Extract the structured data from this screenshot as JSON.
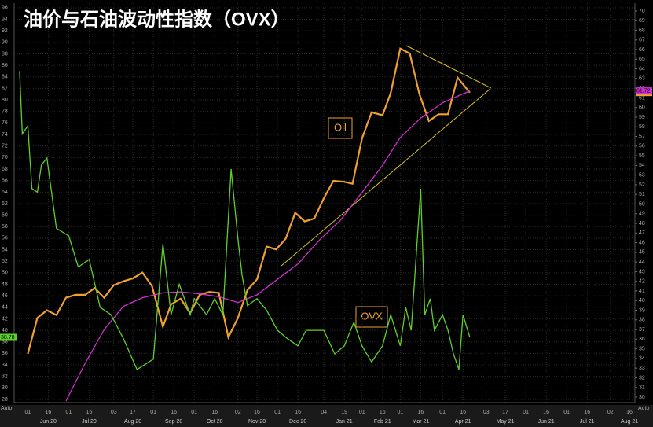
{
  "chart_data": {
    "type": "line",
    "title": "油价与石油波动性指数（OVX）",
    "xlim": [
      "2020-05-22",
      "2021-08-20"
    ],
    "xticks": [
      {
        "value": "2020-06-01",
        "label": "01"
      },
      {
        "value": "2020-06-16",
        "label": "16"
      },
      {
        "value": "2020-07-01",
        "label": "01"
      },
      {
        "value": "2020-07-16",
        "label": "16"
      },
      {
        "value": "2020-08-03",
        "label": "03"
      },
      {
        "value": "2020-08-17",
        "label": "17"
      },
      {
        "value": "2020-09-01",
        "label": "01"
      },
      {
        "value": "2020-09-16",
        "label": "16"
      },
      {
        "value": "2020-10-01",
        "label": "01"
      },
      {
        "value": "2020-10-16",
        "label": "16"
      },
      {
        "value": "2020-11-02",
        "label": "02"
      },
      {
        "value": "2020-11-16",
        "label": "16"
      },
      {
        "value": "2020-12-01",
        "label": "01"
      },
      {
        "value": "2020-12-16",
        "label": "16"
      },
      {
        "value": "2021-01-04",
        "label": "04"
      },
      {
        "value": "2021-01-19",
        "label": "19"
      },
      {
        "value": "2021-02-01",
        "label": "01"
      },
      {
        "value": "2021-02-16",
        "label": "16"
      },
      {
        "value": "2021-03-01",
        "label": "01"
      },
      {
        "value": "2021-03-16",
        "label": "16"
      },
      {
        "value": "2021-04-01",
        "label": "01"
      },
      {
        "value": "2021-04-16",
        "label": "16"
      },
      {
        "value": "2021-05-03",
        "label": "03"
      },
      {
        "value": "2021-05-17",
        "label": "17"
      },
      {
        "value": "2021-06-01",
        "label": "01"
      },
      {
        "value": "2021-06-16",
        "label": "16"
      },
      {
        "value": "2021-07-01",
        "label": "01"
      },
      {
        "value": "2021-07-16",
        "label": "16"
      },
      {
        "value": "2021-08-02",
        "label": "02"
      },
      {
        "value": "2021-08-16",
        "label": "16"
      }
    ],
    "month_labels": [
      {
        "value": "2020-06-16",
        "label": "Jun 20"
      },
      {
        "value": "2020-07-16",
        "label": "Jul 20"
      },
      {
        "value": "2020-08-17",
        "label": "Aug 20"
      },
      {
        "value": "2020-09-16",
        "label": "Sep 20"
      },
      {
        "value": "2020-10-16",
        "label": "Oct 20"
      },
      {
        "value": "2020-11-16",
        "label": "Nov 20"
      },
      {
        "value": "2020-12-16",
        "label": "Dec 20"
      },
      {
        "value": "2021-01-19",
        "label": "Jan 21"
      },
      {
        "value": "2021-02-16",
        "label": "Feb 21"
      },
      {
        "value": "2021-03-16",
        "label": "Mar 21"
      },
      {
        "value": "2021-04-16",
        "label": "Apr 21"
      },
      {
        "value": "2021-05-17",
        "label": "May 21"
      },
      {
        "value": "2021-06-16",
        "label": "Jun 21"
      },
      {
        "value": "2021-07-16",
        "label": "Jul 21"
      },
      {
        "value": "2021-08-16",
        "label": "Aug 21"
      }
    ],
    "ylim": [
      27.45,
      96.8
    ],
    "yticks": [
      28,
      30,
      32,
      34,
      36,
      38,
      40,
      42,
      44,
      46,
      48,
      50,
      52,
      54,
      56,
      58,
      60,
      62,
      64,
      66,
      68,
      70,
      72,
      74,
      76,
      78,
      80,
      82,
      84,
      86,
      88,
      90,
      92,
      94,
      96
    ],
    "y2lim": [
      29.43,
      70.81
    ],
    "y2ticks": [
      30,
      31,
      32,
      33,
      34,
      35,
      36,
      37,
      38,
      39,
      40,
      41,
      42,
      43,
      44,
      45,
      46,
      47,
      48,
      49,
      50,
      51,
      52,
      53,
      54,
      55,
      56,
      57,
      58,
      59,
      60,
      61,
      62,
      63,
      64,
      65,
      66,
      67,
      68,
      69,
      70
    ],
    "grid": true,
    "axis_mode_labels": [
      "Auto",
      "Auto"
    ],
    "series": [
      {
        "name": "Oil",
        "color": "#f0a030",
        "axis": "y2",
        "x": [
          "2020-06-01",
          "2020-06-08",
          "2020-06-15",
          "2020-06-22",
          "2020-06-29",
          "2020-07-06",
          "2020-07-13",
          "2020-07-20",
          "2020-07-27",
          "2020-08-03",
          "2020-08-10",
          "2020-08-17",
          "2020-08-24",
          "2020-08-31",
          "2020-09-08",
          "2020-09-14",
          "2020-09-21",
          "2020-09-28",
          "2020-10-05",
          "2020-10-12",
          "2020-10-19",
          "2020-10-26",
          "2020-11-02",
          "2020-11-09",
          "2020-11-16",
          "2020-11-23",
          "2020-11-30",
          "2020-12-07",
          "2020-12-14",
          "2020-12-21",
          "2020-12-28",
          "2021-01-04",
          "2021-01-11",
          "2021-01-19",
          "2021-01-25",
          "2021-02-01",
          "2021-02-08",
          "2021-02-16",
          "2021-02-22",
          "2021-03-01",
          "2021-03-08",
          "2021-03-15",
          "2021-03-22",
          "2021-03-29",
          "2021-04-05",
          "2021-04-12",
          "2021-04-21"
        ],
        "values": [
          34.5,
          38.2,
          39.0,
          38.5,
          40.3,
          40.6,
          40.6,
          41.3,
          40.3,
          41.6,
          42.0,
          42.3,
          42.9,
          41.5,
          37.3,
          39.6,
          40.2,
          38.7,
          40.6,
          40.9,
          40.8,
          36.2,
          38.2,
          41.1,
          42.2,
          45.6,
          45.3,
          46.4,
          49.1,
          48.2,
          48.5,
          50.6,
          52.4,
          52.3,
          52.1,
          56.8,
          59.5,
          59.2,
          61.5,
          66.1,
          65.6,
          61.4,
          58.6,
          59.3,
          59.3,
          63.1,
          61.55
        ]
      },
      {
        "color": "#d030d0",
        "axis": "y2",
        "x": [
          "2020-06-29",
          "2020-07-13",
          "2020-07-27",
          "2020-08-10",
          "2020-08-24",
          "2020-09-08",
          "2020-09-21",
          "2020-10-05",
          "2020-10-19",
          "2020-11-02",
          "2020-11-16",
          "2020-12-01",
          "2020-12-16",
          "2021-01-01",
          "2021-01-16",
          "2021-02-01",
          "2021-02-16",
          "2021-03-01",
          "2021-03-16",
          "2021-04-01",
          "2021-04-21"
        ],
        "values": [
          29.6,
          33.5,
          37.0,
          39.4,
          40.3,
          40.8,
          40.9,
          40.7,
          40.4,
          39.8,
          40.6,
          42.2,
          43.8,
          46.3,
          48.3,
          51.2,
          54.0,
          56.9,
          58.9,
          60.5,
          61.72
        ]
      },
      {
        "name": "OVX",
        "color": "#5fd02a",
        "axis": "y",
        "x": [
          "2020-05-26",
          "2020-05-28",
          "2020-06-01",
          "2020-06-04",
          "2020-06-08",
          "2020-06-11",
          "2020-06-15",
          "2020-06-22",
          "2020-07-01",
          "2020-07-08",
          "2020-07-16",
          "2020-07-24",
          "2020-08-01",
          "2020-08-10",
          "2020-08-20",
          "2020-09-01",
          "2020-09-08",
          "2020-09-14",
          "2020-09-20",
          "2020-09-28",
          "2020-10-01",
          "2020-10-10",
          "2020-10-16",
          "2020-10-22",
          "2020-10-28",
          "2020-11-02",
          "2020-11-05",
          "2020-11-09",
          "2020-11-16",
          "2020-11-23",
          "2020-12-01",
          "2020-12-08",
          "2020-12-16",
          "2020-12-22",
          "2021-01-04",
          "2021-01-12",
          "2021-01-19",
          "2021-01-26",
          "2021-02-01",
          "2021-02-08",
          "2021-02-16",
          "2021-02-22",
          "2021-03-01",
          "2021-03-05",
          "2021-03-09",
          "2021-03-16",
          "2021-03-19",
          "2021-03-23",
          "2021-03-26",
          "2021-04-01",
          "2021-04-05",
          "2021-04-09",
          "2021-04-13",
          "2021-04-16",
          "2021-04-21"
        ],
        "values": [
          85.0,
          74.1,
          75.5,
          64.6,
          64.0,
          68.7,
          69.9,
          57.7,
          56.4,
          51.0,
          52.3,
          44.0,
          42.7,
          38.6,
          33.2,
          35.0,
          55.0,
          42.7,
          48.0,
          42.7,
          45.5,
          42.7,
          45.5,
          42.7,
          68.0,
          56.0,
          49.6,
          44.3,
          45.5,
          43.5,
          40.0,
          38.6,
          37.3,
          40.0,
          40.0,
          35.9,
          37.3,
          41.4,
          37.3,
          34.5,
          37.3,
          42.7,
          37.3,
          44.0,
          40.0,
          64.6,
          42.7,
          45.5,
          40.0,
          42.7,
          40.0,
          35.9,
          33.2,
          42.7,
          38.78
        ]
      }
    ]
  }
}
